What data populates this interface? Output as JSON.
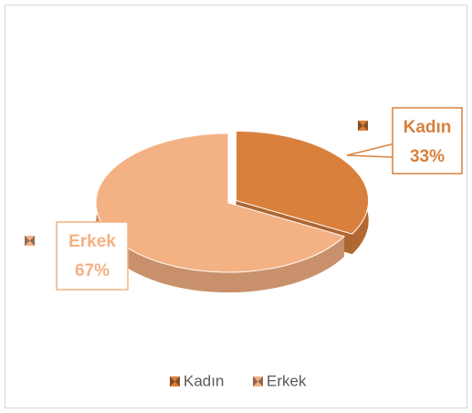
{
  "chart_data": {
    "type": "pie",
    "categories": [
      "Kadın",
      "Erkek"
    ],
    "values": [
      33,
      67
    ],
    "value_labels": [
      "33%",
      "67%"
    ],
    "colors": [
      "#d9803c",
      "#f4b183"
    ],
    "legend": "bottom"
  }
}
